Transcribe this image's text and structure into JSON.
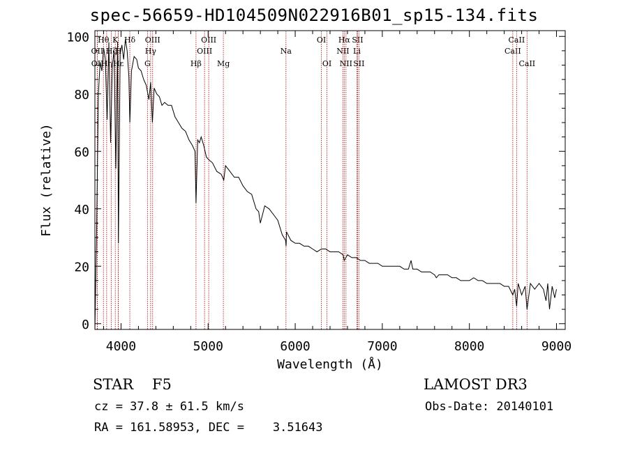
{
  "chart_data": {
    "type": "line",
    "title": "spec-56659-HD104509N022916B01_sp15-134.fits",
    "xlabel": "Wavelength (Å)",
    "ylabel": "Flux (relative)",
    "xlim": [
      3700,
      9100
    ],
    "ylim": [
      -2,
      102
    ],
    "xticks": [
      4000,
      5000,
      6000,
      7000,
      8000,
      9000
    ],
    "yticks": [
      0,
      20,
      40,
      60,
      80,
      100
    ],
    "grid": false,
    "series": [
      {
        "x": [
          3700,
          3720,
          3740,
          3760,
          3780,
          3800,
          3820,
          3840,
          3860,
          3880,
          3900,
          3920,
          3940,
          3960,
          3970,
          3990,
          4010,
          4030,
          4050,
          4070,
          4090,
          4101,
          4120,
          4150,
          4180,
          4200,
          4230,
          4260,
          4290,
          4320,
          4340,
          4360,
          4380,
          4410,
          4440,
          4470,
          4500,
          4540,
          4580,
          4620,
          4660,
          4700,
          4740,
          4780,
          4820,
          4850,
          4861,
          4880,
          4900,
          4920,
          4950,
          4980,
          5010,
          5050,
          5100,
          5150,
          5180,
          5200,
          5250,
          5300,
          5350,
          5400,
          5450,
          5500,
          5550,
          5580,
          5600,
          5650,
          5700,
          5750,
          5800,
          5850,
          5890,
          5895,
          5900,
          5950,
          6000,
          6050,
          6100,
          6150,
          6200,
          6250,
          6300,
          6350,
          6400,
          6450,
          6500,
          6550,
          6563,
          6600,
          6650,
          6700,
          6750,
          6800,
          6850,
          6900,
          6950,
          7000,
          7050,
          7100,
          7150,
          7200,
          7250,
          7300,
          7330,
          7350,
          7400,
          7450,
          7500,
          7550,
          7600,
          7620,
          7650,
          7700,
          7750,
          7800,
          7850,
          7900,
          7950,
          8000,
          8050,
          8100,
          8150,
          8200,
          8250,
          8300,
          8350,
          8400,
          8450,
          8498,
          8520,
          8542,
          8560,
          8600,
          8640,
          8662,
          8700,
          8750,
          8800,
          8850,
          8880,
          8900,
          8920,
          8950,
          8980,
          9000
        ],
        "y": [
          -2,
          33,
          80,
          91,
          88,
          96,
          92,
          71,
          98,
          63,
          90,
          95,
          54,
          98,
          28,
          94,
          97,
          92,
          99,
          95,
          86,
          70,
          88,
          93,
          92,
          89,
          88,
          85,
          83,
          78,
          84,
          70,
          82,
          80,
          79,
          76,
          77,
          76,
          76,
          72,
          70,
          68,
          67,
          64,
          62,
          60,
          42,
          64,
          63,
          65,
          62,
          58,
          57,
          56,
          53,
          52,
          50,
          55,
          53,
          51,
          51,
          48,
          46,
          45,
          40,
          39,
          35,
          41,
          40,
          38,
          36,
          31,
          29,
          27,
          32,
          29,
          28,
          28,
          27,
          27,
          26,
          25,
          26,
          26,
          25,
          25,
          25,
          24,
          22,
          24,
          23,
          23,
          22,
          22,
          21,
          21,
          21,
          20,
          20,
          20,
          20,
          20,
          19,
          19,
          22,
          19,
          19,
          18,
          18,
          18,
          17,
          16,
          17,
          17,
          17,
          16,
          16,
          15,
          15,
          15,
          16,
          15,
          15,
          14,
          14,
          14,
          14,
          13,
          13,
          10,
          12,
          6,
          14,
          10,
          13,
          5,
          14,
          12,
          14,
          12,
          8,
          14,
          5,
          13,
          9,
          12
        ]
      }
    ],
    "lines": [
      {
        "name": "OII",
        "wl": 3727,
        "row": 2
      },
      {
        "name": "OII",
        "wl": 3729,
        "row": 3
      },
      {
        "name": "Hθ",
        "wl": 3798,
        "row": 1
      },
      {
        "name": "Hη",
        "wl": 3835,
        "row": 3
      },
      {
        "name": "Hζ",
        "wl": 3889,
        "row": 2
      },
      {
        "name": "K",
        "wl": 3934,
        "row": 1
      },
      {
        "name": "H",
        "wl": 3968,
        "row": 2
      },
      {
        "name": "Hε",
        "wl": 3970,
        "row": 3
      },
      {
        "name": "Hδ",
        "wl": 4101,
        "row": 1
      },
      {
        "name": "G",
        "wl": 4304,
        "row": 3
      },
      {
        "name": "Hγ",
        "wl": 4340,
        "row": 2
      },
      {
        "name": "OIII",
        "wl": 4363,
        "row": 1
      },
      {
        "name": "Hβ",
        "wl": 4861,
        "row": 3
      },
      {
        "name": "OIII",
        "wl": 4959,
        "row": 2
      },
      {
        "name": "OIII",
        "wl": 5007,
        "row": 1
      },
      {
        "name": "Mg",
        "wl": 5175,
        "row": 3
      },
      {
        "name": "Na",
        "wl": 5894,
        "row": 2
      },
      {
        "name": "OI",
        "wl": 6300,
        "row": 1
      },
      {
        "name": "OI",
        "wl": 6364,
        "row": 3
      },
      {
        "name": "NII",
        "wl": 6548,
        "row": 2
      },
      {
        "name": "Hα",
        "wl": 6563,
        "row": 1
      },
      {
        "name": "NII",
        "wl": 6583,
        "row": 3
      },
      {
        "name": "Li",
        "wl": 6708,
        "row": 2
      },
      {
        "name": "SII",
        "wl": 6716,
        "row": 1
      },
      {
        "name": "SII",
        "wl": 6731,
        "row": 3
      },
      {
        "name": "CaII",
        "wl": 8498,
        "row": 2
      },
      {
        "name": "CaII",
        "wl": 8542,
        "row": 1
      },
      {
        "name": "CaII",
        "wl": 8662,
        "row": 3
      }
    ]
  },
  "info": {
    "class": "STAR    F5",
    "survey": "LAMOST DR3",
    "cz": "cz = 37.8 ± 61.5 km/s",
    "obs_date": "Obs-Date: 20140101",
    "coords": "RA = 161.58953, DEC =    3.51643"
  },
  "colors": {
    "axis": "#000000",
    "spectrum": "#000000",
    "line_marker": "#b00000"
  }
}
